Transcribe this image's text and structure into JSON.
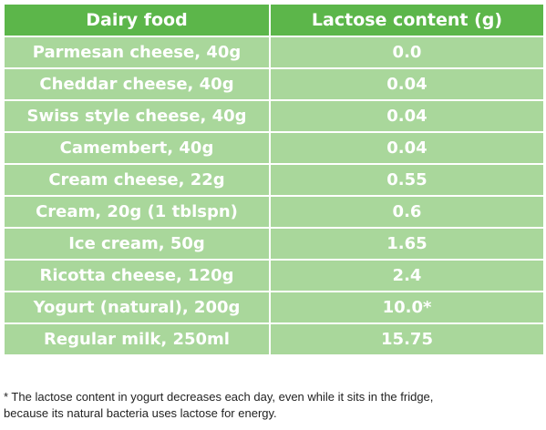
{
  "table": {
    "headers": [
      "Dairy food",
      "Lactose content (g)"
    ],
    "rows": [
      [
        "Parmesan cheese, 40g",
        "0.0"
      ],
      [
        "Cheddar cheese, 40g",
        "0.04"
      ],
      [
        "Swiss style cheese, 40g",
        "0.04"
      ],
      [
        "Camembert, 40g",
        "0.04"
      ],
      [
        "Cream cheese, 22g",
        "0.55"
      ],
      [
        "Cream, 20g (1 tblspn)",
        "0.6"
      ],
      [
        "Ice cream, 50g",
        "1.65"
      ],
      [
        "Ricotta cheese, 120g",
        "2.4"
      ],
      [
        "Yogurt (natural), 200g",
        "10.0*"
      ],
      [
        "Regular milk, 250ml",
        "15.75"
      ]
    ]
  },
  "footnote": {
    "line1": "* The lactose content in yogurt decreases each day, even while it sits in the fridge,",
    "line2": "because its natural bacteria uses lactose for energy."
  },
  "colors": {
    "header_bg": "#5cb64a",
    "row_bg": "#a9d79b",
    "text": "#ffffff"
  }
}
